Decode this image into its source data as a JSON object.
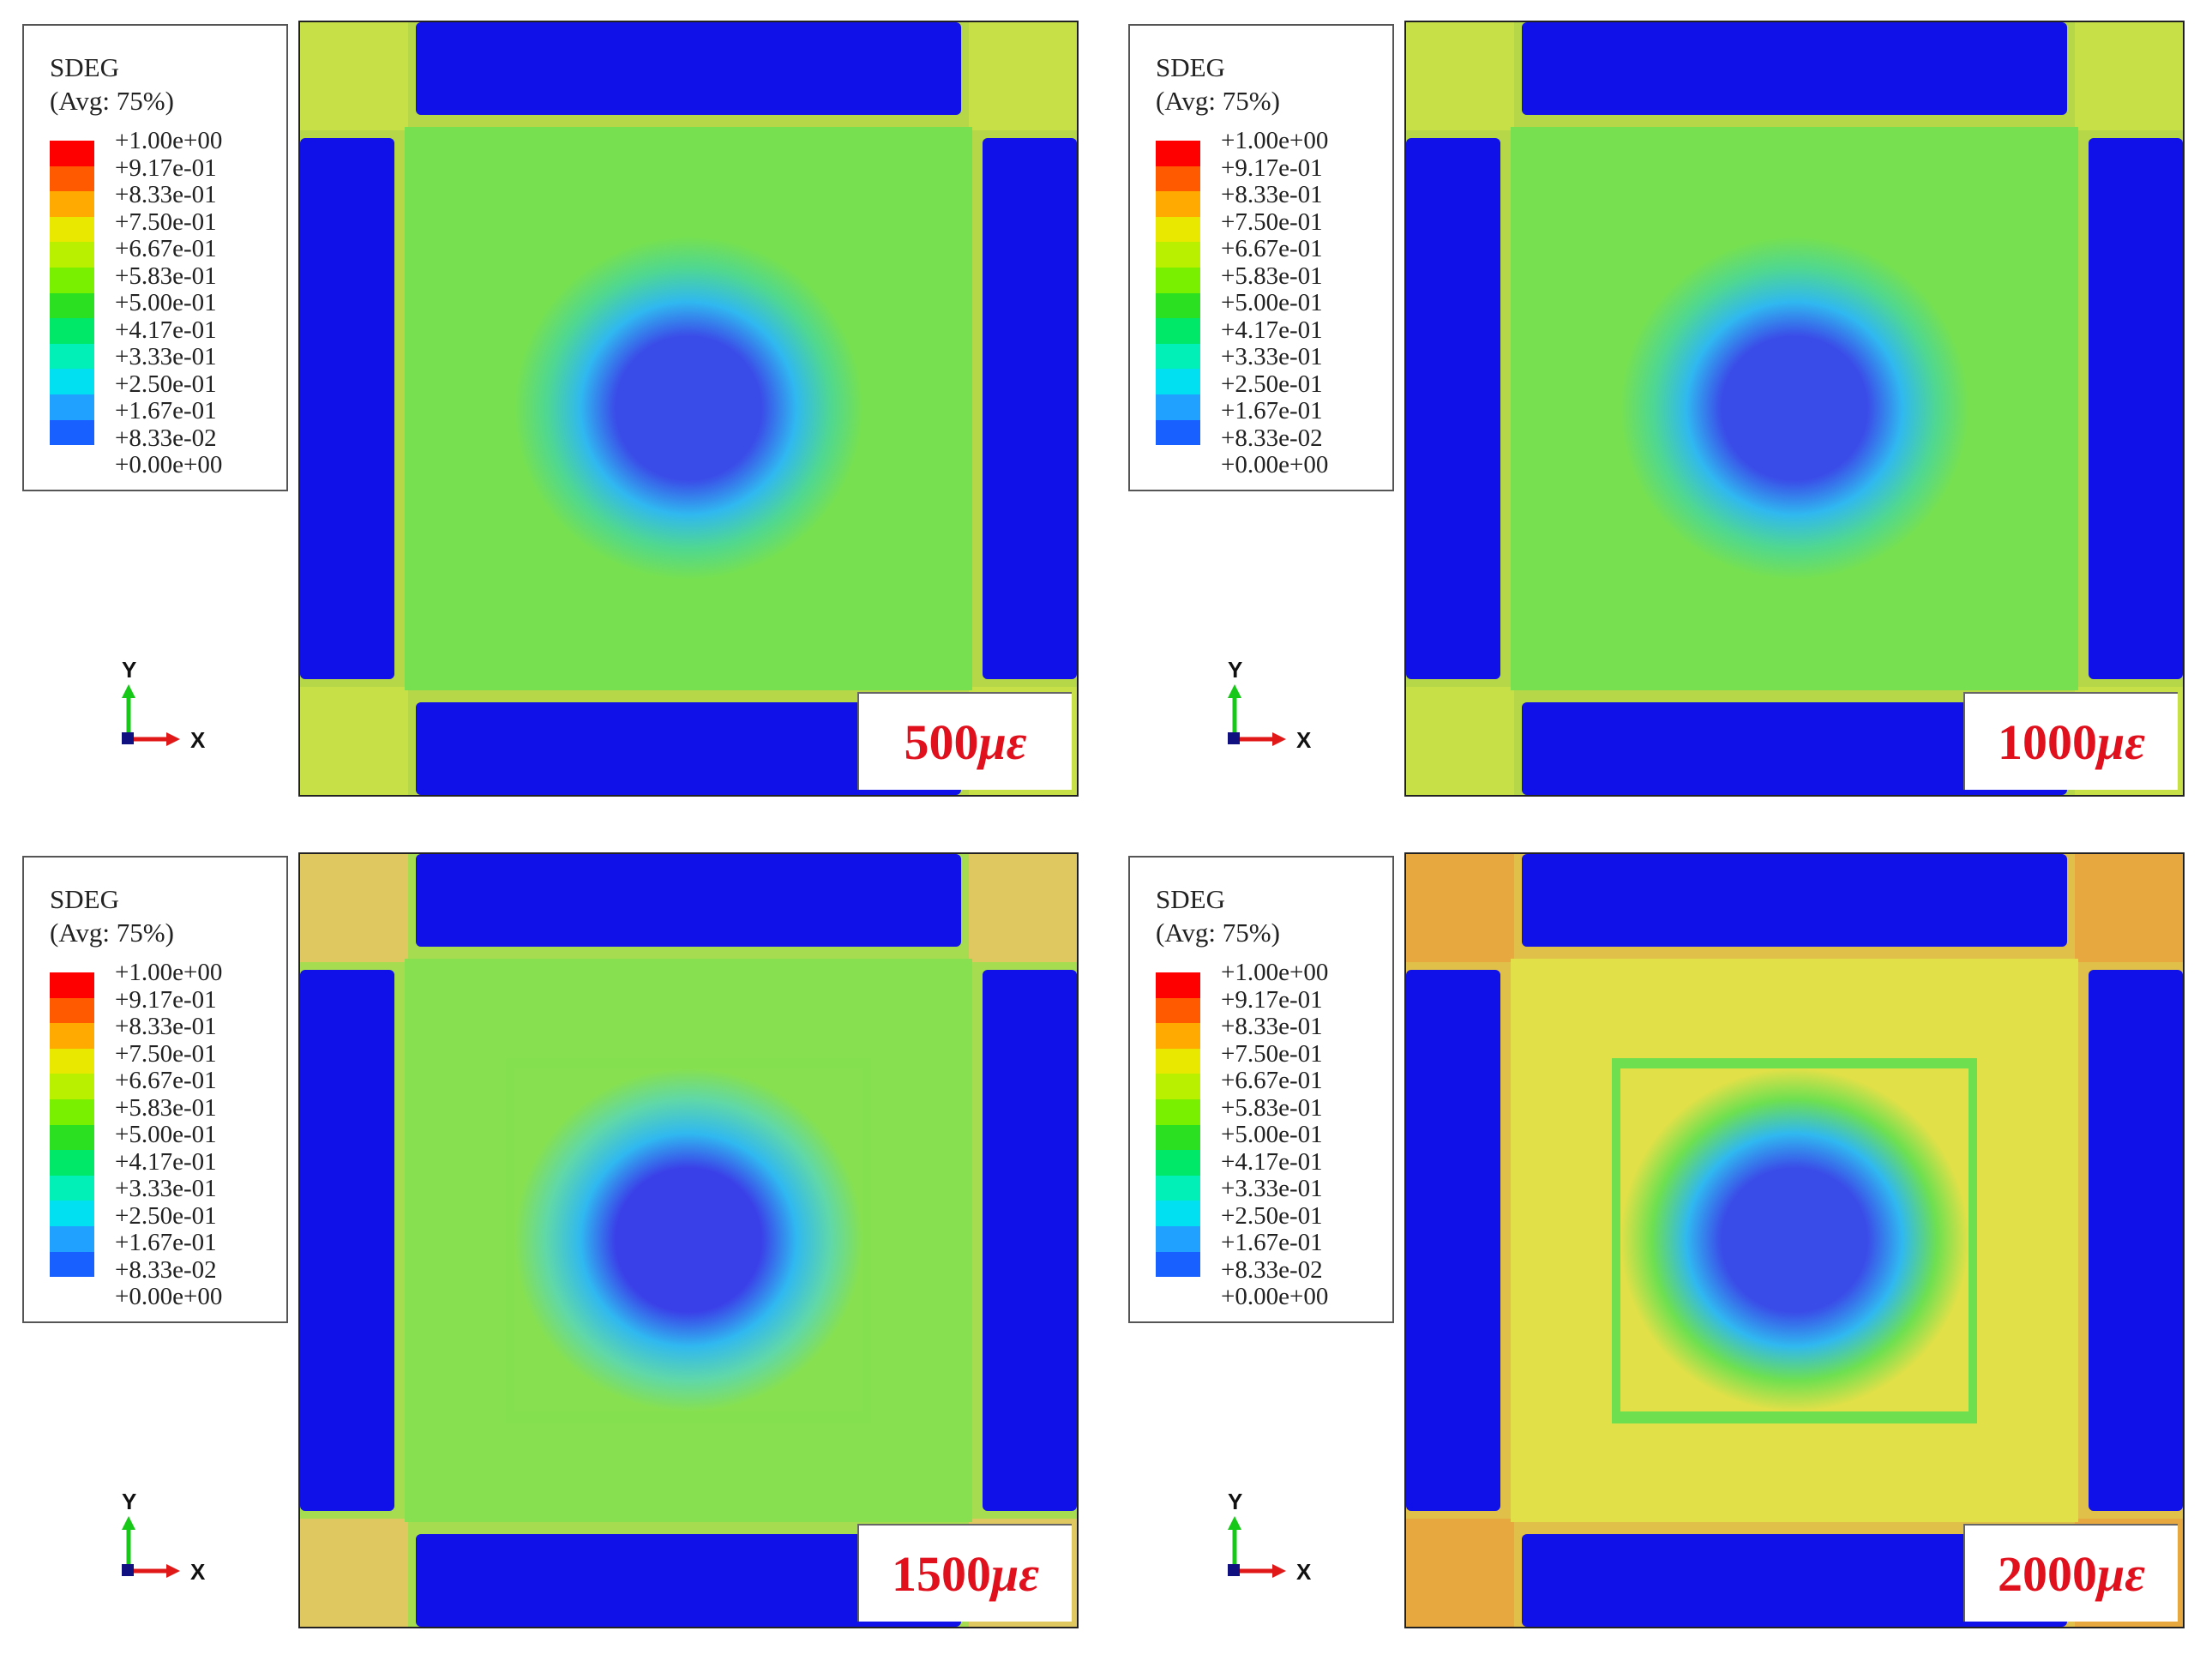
{
  "legend": {
    "title": "SDEG",
    "avg": "(Avg: 75%)",
    "ticks": [
      "+1.00e+00",
      "+9.17e-01",
      "+8.33e-01",
      "+7.50e-01",
      "+6.67e-01",
      "+5.83e-01",
      "+5.00e-01",
      "+4.17e-01",
      "+3.33e-01",
      "+2.50e-01",
      "+1.67e-01",
      "+8.33e-02",
      "+0.00e+00"
    ],
    "colors": [
      "#ff0000",
      "#ff5a00",
      "#ffaa00",
      "#e8e800",
      "#b8f000",
      "#78f000",
      "#2ae020",
      "#00e868",
      "#00f0b8",
      "#00e0f0",
      "#20a0ff",
      "#1860ff",
      "#1010e8"
    ]
  },
  "triad": {
    "y_label": "Y",
    "x_label": "X",
    "y_color": "#18c818",
    "x_color": "#e01818",
    "z_color": "#101080"
  },
  "panels": [
    {
      "strain_value": "500",
      "strain_unit": "με",
      "frame": "#b6d848",
      "body": "#76e050",
      "mid": "#50d890",
      "core": "#3a4ce8",
      "corner": "#c8e048"
    },
    {
      "strain_value": "1000",
      "strain_unit": "με",
      "frame": "#b6d848",
      "body": "#76e050",
      "mid": "#50d890",
      "core": "#3a4ce8",
      "corner": "#c8e048"
    },
    {
      "strain_value": "1500",
      "strain_unit": "με",
      "frame": "#a6dc50",
      "body": "#86e050",
      "mid": "#60d8a8",
      "core": "#3a40e8",
      "corner": "#e0c860"
    },
    {
      "strain_value": "2000",
      "strain_unit": "με",
      "frame": "#e0c048",
      "body": "#e2e048",
      "mid": "#6ee050",
      "core": "#3a4ce8",
      "corner": "#e8a840"
    }
  ]
}
